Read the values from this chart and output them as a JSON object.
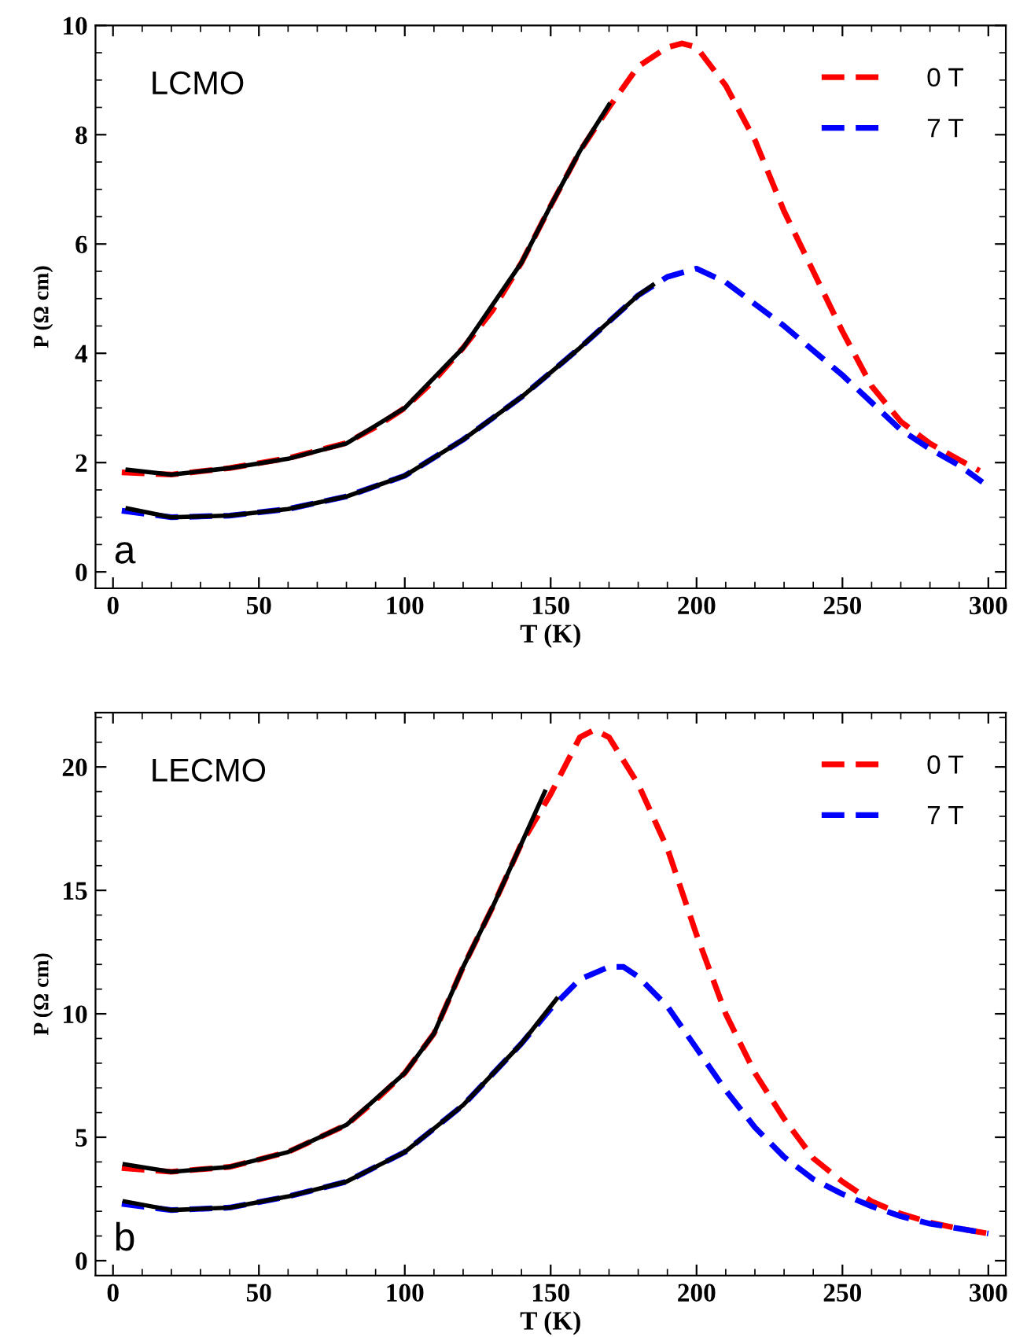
{
  "chart_data": [
    {
      "type": "line",
      "xlabel": "T (K)",
      "ylabel": "P (Ω cm)",
      "annotations": [
        "LCMO",
        "a"
      ],
      "legend": "top right",
      "line_style": "dashed",
      "grid": false,
      "xlim": [
        -6,
        306
      ],
      "xticks": [
        0,
        50,
        100,
        150,
        200,
        250,
        300
      ],
      "ylim": [
        -0.3,
        10
      ],
      "yticks": [
        0,
        2,
        4,
        6,
        8,
        10
      ],
      "series": [
        {
          "name": "0 T",
          "color": "#ff0000",
          "x": [
            3,
            20,
            40,
            60,
            80,
            90,
            100,
            110,
            120,
            130,
            140,
            150,
            160,
            170,
            180,
            190,
            195,
            200,
            210,
            220,
            230,
            240,
            250,
            260,
            270,
            280,
            290,
            297
          ],
          "values": [
            1.82,
            1.78,
            1.9,
            2.08,
            2.36,
            2.65,
            3.0,
            3.5,
            4.1,
            4.78,
            5.66,
            6.7,
            7.7,
            8.5,
            9.25,
            9.6,
            9.67,
            9.6,
            8.9,
            7.9,
            6.6,
            5.5,
            4.4,
            3.4,
            2.75,
            2.35,
            2.05,
            1.85
          ]
        },
        {
          "name": "7 T",
          "color": "#0000ff",
          "x": [
            3,
            20,
            40,
            60,
            80,
            100,
            120,
            140,
            160,
            180,
            190,
            200,
            210,
            220,
            230,
            240,
            250,
            260,
            270,
            280,
            290,
            298
          ],
          "values": [
            1.12,
            1.0,
            1.03,
            1.15,
            1.38,
            1.76,
            2.42,
            3.2,
            4.1,
            5.06,
            5.4,
            5.55,
            5.3,
            4.9,
            4.5,
            4.05,
            3.6,
            3.1,
            2.6,
            2.25,
            1.95,
            1.64
          ]
        },
        {
          "color": "#000000",
          "line_style": "solid",
          "x": [
            5,
            20,
            40,
            60,
            80,
            100,
            120,
            140,
            150,
            160,
            170
          ],
          "values": [
            1.87,
            1.78,
            1.9,
            2.07,
            2.35,
            3.0,
            4.1,
            5.66,
            6.7,
            7.7,
            8.55
          ]
        },
        {
          "color": "#000000",
          "line_style": "solid",
          "x": [
            5,
            20,
            40,
            60,
            80,
            100,
            120,
            140,
            160,
            180,
            185
          ],
          "values": [
            1.16,
            1.0,
            1.03,
            1.15,
            1.38,
            1.76,
            2.42,
            3.2,
            4.1,
            5.06,
            5.25
          ]
        }
      ]
    },
    {
      "type": "line",
      "xlabel": "T (K)",
      "ylabel": "P (Ω cm)",
      "annotations": [
        "LECMO",
        "b"
      ],
      "legend": "top right",
      "line_style": "dashed",
      "grid": false,
      "xlim": [
        -6,
        306
      ],
      "xticks": [
        0,
        50,
        100,
        150,
        200,
        250,
        300
      ],
      "ylim": [
        -0.6,
        22.2
      ],
      "yticks": [
        0,
        5,
        10,
        15,
        20
      ],
      "series": [
        {
          "name": "0 T",
          "color": "#ff0000",
          "x": [
            3,
            20,
            40,
            60,
            80,
            90,
            100,
            110,
            120,
            130,
            140,
            150,
            160,
            165,
            170,
            180,
            190,
            200,
            210,
            220,
            230,
            240,
            250,
            260,
            270,
            280,
            290,
            300
          ],
          "values": [
            3.75,
            3.6,
            3.8,
            4.4,
            5.5,
            6.5,
            7.6,
            9.2,
            11.9,
            14.3,
            16.9,
            18.9,
            21.2,
            21.5,
            21.2,
            19.3,
            16.7,
            13.2,
            10.0,
            7.6,
            5.75,
            4.15,
            3.2,
            2.4,
            1.9,
            1.55,
            1.3,
            1.1
          ]
        },
        {
          "name": "7 T",
          "color": "#0000ff",
          "x": [
            3,
            20,
            40,
            60,
            80,
            100,
            120,
            140,
            150,
            160,
            170,
            175,
            180,
            190,
            200,
            210,
            220,
            230,
            240,
            250,
            260,
            270,
            280,
            290,
            300
          ],
          "values": [
            2.3,
            2.05,
            2.15,
            2.6,
            3.2,
            4.4,
            6.3,
            8.8,
            10.2,
            11.4,
            11.9,
            11.9,
            11.5,
            10.3,
            8.6,
            6.9,
            5.4,
            4.2,
            3.3,
            2.7,
            2.2,
            1.8,
            1.5,
            1.3,
            1.1
          ]
        },
        {
          "color": "#000000",
          "line_style": "solid",
          "x": [
            4,
            20,
            40,
            60,
            80,
            100,
            110,
            120,
            130,
            140,
            148
          ],
          "values": [
            3.9,
            3.6,
            3.8,
            4.4,
            5.5,
            7.6,
            9.2,
            11.9,
            14.3,
            16.9,
            19.0
          ]
        },
        {
          "color": "#000000",
          "line_style": "solid",
          "x": [
            4,
            20,
            40,
            60,
            80,
            100,
            120,
            140,
            152
          ],
          "values": [
            2.4,
            2.05,
            2.15,
            2.6,
            3.2,
            4.4,
            6.3,
            8.8,
            10.6
          ]
        }
      ]
    }
  ]
}
